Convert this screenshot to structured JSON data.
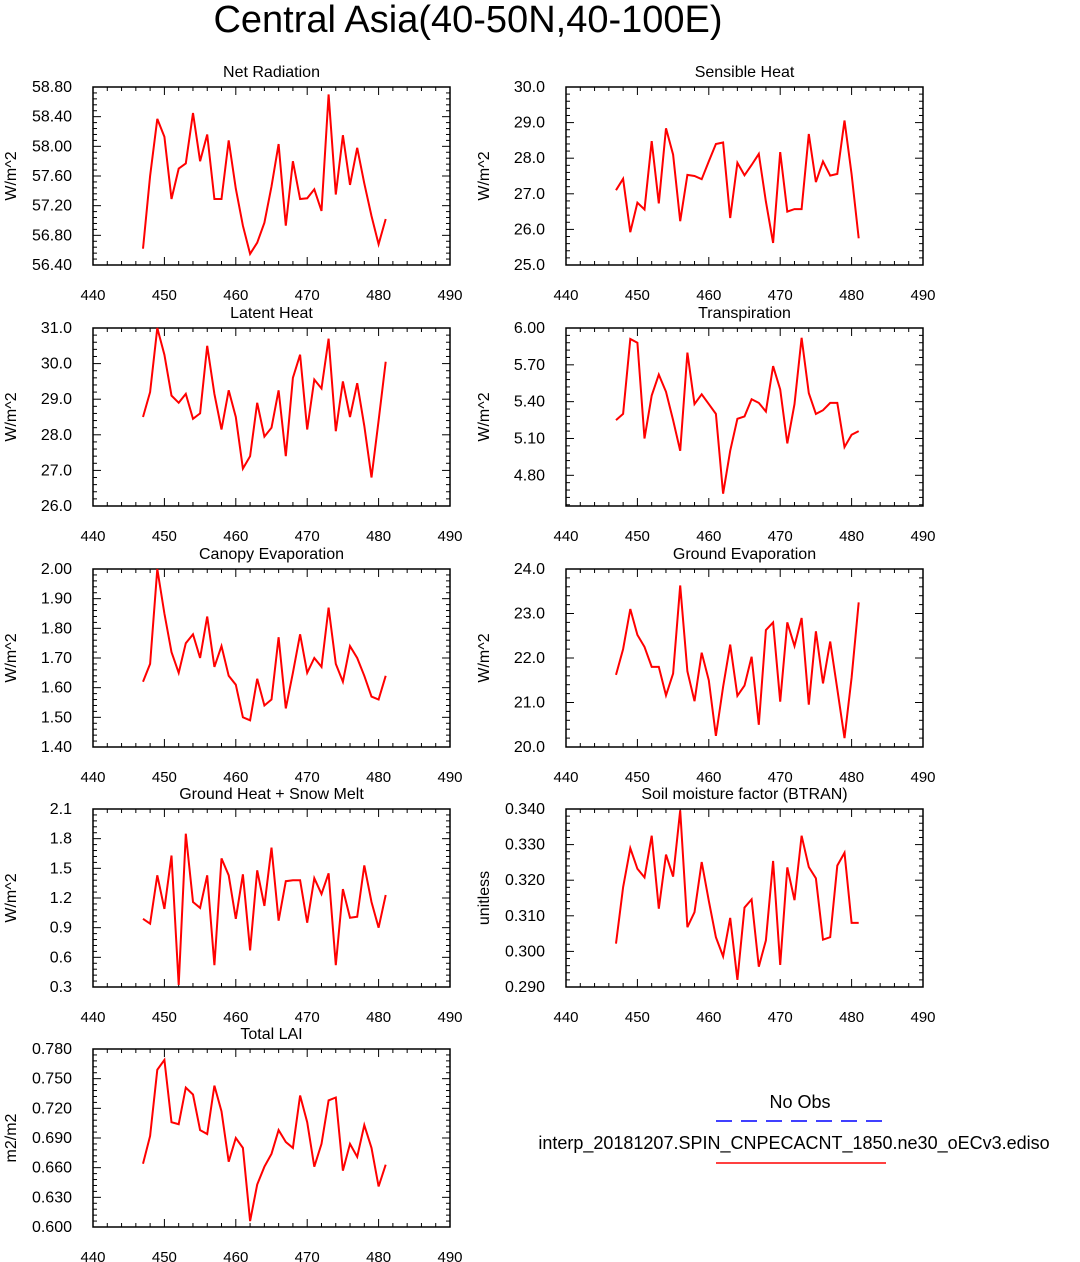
{
  "figure_title": "Central Asia(40-50N,40-100E)",
  "line_color": "#ff0000",
  "legend": {
    "obs_label": "No Obs",
    "obs_color": "#0000ff",
    "model_label": "interp_20181207.SPIN_CNPECACNT_1850.ne30_oECv3.ediso",
    "model_color": "#ff0000"
  },
  "chart_data": [
    {
      "type": "line",
      "title": "Net Radiation",
      "ylabel": "W/m^2",
      "xlim": [
        440,
        490
      ],
      "xticks": [
        "440",
        "450",
        "460",
        "470",
        "480",
        "490"
      ],
      "ylim": [
        56.4,
        58.8
      ],
      "yticks": [
        "56.40",
        "56.80",
        "57.20",
        "57.60",
        "58.00",
        "58.40",
        "58.80"
      ],
      "x": [
        447,
        448,
        449,
        450,
        451,
        452,
        453,
        454,
        455,
        456,
        457,
        458,
        459,
        460,
        461,
        462,
        463,
        464,
        465,
        466,
        467,
        468,
        469,
        470,
        471,
        472,
        473,
        474,
        475,
        476,
        477,
        478,
        479,
        480,
        481
      ],
      "y": [
        56.62,
        57.6,
        58.37,
        58.13,
        57.29,
        57.7,
        57.77,
        58.45,
        57.8,
        58.16,
        57.29,
        57.29,
        58.08,
        57.43,
        56.93,
        56.55,
        56.7,
        56.97,
        57.46,
        58.03,
        56.93,
        57.8,
        57.29,
        57.3,
        57.42,
        57.13,
        58.7,
        57.35,
        58.15,
        57.48,
        57.98,
        57.5,
        57.06,
        56.68,
        57.02
      ]
    },
    {
      "type": "line",
      "title": "Sensible Heat",
      "ylabel": "W/m^2",
      "xlim": [
        440,
        490
      ],
      "xticks": [
        "440",
        "450",
        "460",
        "470",
        "480",
        "490"
      ],
      "ylim": [
        25.0,
        30.0
      ],
      "yticks": [
        "25.0",
        "26.0",
        "27.0",
        "28.0",
        "29.0",
        "30.0"
      ],
      "x": [
        447,
        448,
        449,
        450,
        451,
        452,
        453,
        454,
        455,
        456,
        457,
        458,
        459,
        460,
        461,
        462,
        463,
        464,
        465,
        466,
        467,
        468,
        469,
        470,
        471,
        472,
        473,
        474,
        475,
        476,
        477,
        478,
        479,
        480,
        481
      ],
      "y": [
        27.1,
        27.42,
        25.92,
        26.75,
        26.56,
        28.48,
        26.73,
        28.84,
        28.1,
        26.23,
        27.53,
        27.5,
        27.41,
        27.91,
        28.4,
        28.44,
        26.32,
        27.87,
        27.52,
        27.81,
        28.12,
        26.78,
        25.62,
        28.17,
        26.5,
        26.57,
        26.57,
        28.68,
        27.33,
        27.91,
        27.51,
        27.56,
        29.06,
        27.55,
        25.75
      ]
    },
    {
      "type": "line",
      "title": "Latent Heat",
      "ylabel": "W/m^2",
      "xlim": [
        440,
        490
      ],
      "xticks": [
        "440",
        "450",
        "460",
        "470",
        "480",
        "490"
      ],
      "ylim": [
        26.0,
        31.0
      ],
      "yticks": [
        "26.0",
        "27.0",
        "28.0",
        "29.0",
        "30.0",
        "31.0"
      ],
      "x": [
        447,
        448,
        449,
        450,
        451,
        452,
        453,
        454,
        455,
        456,
        457,
        458,
        459,
        460,
        461,
        462,
        463,
        464,
        465,
        466,
        467,
        468,
        469,
        470,
        471,
        472,
        473,
        474,
        475,
        476,
        477,
        478,
        479,
        480,
        481
      ],
      "y": [
        28.5,
        29.2,
        31.0,
        30.25,
        29.1,
        28.9,
        29.15,
        28.45,
        28.6,
        30.5,
        29.15,
        28.15,
        29.25,
        28.5,
        27.05,
        27.4,
        28.9,
        27.95,
        28.2,
        29.25,
        27.4,
        29.6,
        30.25,
        28.15,
        29.55,
        29.3,
        30.7,
        28.1,
        29.5,
        28.5,
        29.45,
        28.25,
        26.8,
        28.4,
        30.05
      ]
    },
    {
      "type": "line",
      "title": "Transpiration",
      "ylabel": "W/m^2",
      "xlim": [
        440,
        490
      ],
      "xticks": [
        "440",
        "450",
        "460",
        "470",
        "480",
        "490"
      ],
      "ylim": [
        4.55,
        6.0
      ],
      "yticks": [
        "4.80",
        "5.10",
        "5.40",
        "5.70",
        "6.00"
      ],
      "x": [
        447,
        448,
        449,
        450,
        451,
        452,
        453,
        454,
        455,
        456,
        457,
        458,
        459,
        460,
        461,
        462,
        463,
        464,
        465,
        466,
        467,
        468,
        469,
        470,
        471,
        472,
        473,
        474,
        475,
        476,
        477,
        478,
        479,
        480,
        481
      ],
      "y": [
        5.25,
        5.3,
        5.91,
        5.88,
        5.1,
        5.45,
        5.62,
        5.48,
        5.25,
        5.0,
        5.8,
        5.38,
        5.46,
        5.38,
        5.3,
        4.65,
        5.0,
        5.26,
        5.28,
        5.42,
        5.39,
        5.32,
        5.69,
        5.5,
        5.06,
        5.38,
        5.92,
        5.47,
        5.3,
        5.33,
        5.39,
        5.39,
        5.03,
        5.13,
        5.16
      ]
    },
    {
      "type": "line",
      "title": "Canopy Evaporation",
      "ylabel": "W/m^2",
      "xlim": [
        440,
        490
      ],
      "xticks": [
        "440",
        "450",
        "460",
        "470",
        "480",
        "490"
      ],
      "ylim": [
        1.4,
        2.0
      ],
      "yticks": [
        "1.40",
        "1.50",
        "1.60",
        "1.70",
        "1.80",
        "1.90",
        "2.00"
      ],
      "x": [
        447,
        448,
        449,
        450,
        451,
        452,
        453,
        454,
        455,
        456,
        457,
        458,
        459,
        460,
        461,
        462,
        463,
        464,
        465,
        466,
        467,
        468,
        469,
        470,
        471,
        472,
        473,
        474,
        475,
        476,
        477,
        478,
        479,
        480,
        481
      ],
      "y": [
        1.62,
        1.68,
        2.0,
        1.85,
        1.72,
        1.65,
        1.75,
        1.78,
        1.7,
        1.84,
        1.67,
        1.74,
        1.64,
        1.61,
        1.5,
        1.49,
        1.63,
        1.54,
        1.56,
        1.77,
        1.53,
        1.65,
        1.78,
        1.65,
        1.7,
        1.67,
        1.87,
        1.68,
        1.62,
        1.74,
        1.7,
        1.64,
        1.57,
        1.56,
        1.64
      ]
    },
    {
      "type": "line",
      "title": "Ground Evaporation",
      "ylabel": "W/m^2",
      "xlim": [
        440,
        490
      ],
      "xticks": [
        "440",
        "450",
        "460",
        "470",
        "480",
        "490"
      ],
      "ylim": [
        20.0,
        24.0
      ],
      "yticks": [
        "20.0",
        "21.0",
        "22.0",
        "23.0",
        "24.0"
      ],
      "x": [
        447,
        448,
        449,
        450,
        451,
        452,
        453,
        454,
        455,
        456,
        457,
        458,
        459,
        460,
        461,
        462,
        463,
        464,
        465,
        466,
        467,
        468,
        469,
        470,
        471,
        472,
        473,
        474,
        475,
        476,
        477,
        478,
        479,
        480,
        481
      ],
      "y": [
        21.62,
        22.2,
        23.1,
        22.52,
        22.25,
        21.8,
        21.8,
        21.16,
        21.65,
        23.63,
        21.7,
        21.03,
        22.12,
        21.5,
        20.25,
        21.35,
        22.3,
        21.15,
        21.38,
        22.03,
        20.5,
        22.63,
        22.8,
        21.02,
        22.8,
        22.27,
        22.9,
        20.95,
        22.6,
        21.43,
        22.37,
        21.3,
        20.2,
        21.56,
        23.25
      ]
    },
    {
      "type": "line",
      "title": "Ground Heat + Snow Melt",
      "ylabel": "W/m^2",
      "xlim": [
        440,
        490
      ],
      "xticks": [
        "440",
        "450",
        "460",
        "470",
        "480",
        "490"
      ],
      "ylim": [
        0.3,
        2.1
      ],
      "yticks": [
        "0.3",
        "0.6",
        "0.9",
        "1.2",
        "1.5",
        "1.8",
        "2.1"
      ],
      "x": [
        447,
        448,
        449,
        450,
        451,
        452,
        453,
        454,
        455,
        456,
        457,
        458,
        459,
        460,
        461,
        462,
        463,
        464,
        465,
        466,
        467,
        468,
        469,
        470,
        471,
        472,
        473,
        474,
        475,
        476,
        477,
        478,
        479,
        480,
        481
      ],
      "y": [
        0.99,
        0.94,
        1.43,
        1.09,
        1.63,
        0.32,
        1.85,
        1.16,
        1.1,
        1.43,
        0.52,
        1.6,
        1.43,
        0.99,
        1.44,
        0.67,
        1.48,
        1.12,
        1.71,
        0.97,
        1.37,
        1.38,
        1.38,
        0.95,
        1.4,
        1.24,
        1.45,
        0.52,
        1.29,
        1.0,
        1.01,
        1.53,
        1.16,
        0.9,
        1.23
      ]
    },
    {
      "type": "line",
      "title": "Soil moisture factor (BTRAN)",
      "ylabel": "unitless",
      "xlim": [
        440,
        490
      ],
      "xticks": [
        "440",
        "450",
        "460",
        "470",
        "480",
        "490"
      ],
      "ylim": [
        0.29,
        0.34
      ],
      "yticks": [
        "0.290",
        "0.300",
        "0.310",
        "0.320",
        "0.330",
        "0.340"
      ],
      "x": [
        447,
        448,
        449,
        450,
        451,
        452,
        453,
        454,
        455,
        456,
        457,
        458,
        459,
        460,
        461,
        462,
        463,
        464,
        465,
        466,
        467,
        468,
        469,
        470,
        471,
        472,
        473,
        474,
        475,
        476,
        477,
        478,
        479,
        480,
        481
      ],
      "y": [
        0.3022,
        0.318,
        0.329,
        0.3232,
        0.3208,
        0.3325,
        0.312,
        0.3272,
        0.321,
        0.3396,
        0.3068,
        0.311,
        0.3251,
        0.3142,
        0.304,
        0.2986,
        0.3094,
        0.292,
        0.3123,
        0.3146,
        0.2957,
        0.3031,
        0.3254,
        0.2962,
        0.3236,
        0.3144,
        0.3325,
        0.3237,
        0.3205,
        0.3033,
        0.304,
        0.3241,
        0.3277,
        0.308,
        0.308
      ]
    },
    {
      "type": "line",
      "title": "Total LAI",
      "ylabel": "m2/m2",
      "xlim": [
        440,
        490
      ],
      "xticks": [
        "440",
        "450",
        "460",
        "470",
        "480",
        "490"
      ],
      "ylim": [
        0.6,
        0.78
      ],
      "yticks": [
        "0.600",
        "0.630",
        "0.660",
        "0.690",
        "0.720",
        "0.750",
        "0.780"
      ],
      "x": [
        447,
        448,
        449,
        450,
        451,
        452,
        453,
        454,
        455,
        456,
        457,
        458,
        459,
        460,
        461,
        462,
        463,
        464,
        465,
        466,
        467,
        468,
        469,
        470,
        471,
        472,
        473,
        474,
        475,
        476,
        477,
        478,
        479,
        480,
        481
      ],
      "y": [
        0.664,
        0.692,
        0.759,
        0.769,
        0.706,
        0.704,
        0.741,
        0.734,
        0.698,
        0.694,
        0.743,
        0.717,
        0.666,
        0.69,
        0.68,
        0.606,
        0.643,
        0.661,
        0.674,
        0.698,
        0.686,
        0.68,
        0.733,
        0.706,
        0.661,
        0.684,
        0.728,
        0.731,
        0.657,
        0.684,
        0.671,
        0.703,
        0.68,
        0.641,
        0.663
      ]
    }
  ]
}
